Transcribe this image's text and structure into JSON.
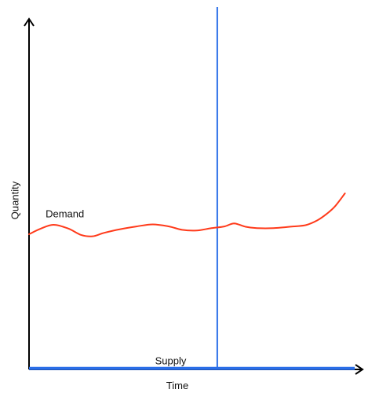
{
  "chart_data": {
    "type": "line",
    "title": "",
    "xlabel": "Time",
    "ylabel": "Quantity",
    "grid": false,
    "legend": "none",
    "xlim": [
      0,
      100
    ],
    "ylim": [
      0,
      100
    ],
    "series": [
      {
        "name": "Demand",
        "color": "#ff3a1a",
        "points": [
          [
            0,
            40
          ],
          [
            3.5,
            41.6
          ],
          [
            7.5,
            42.8
          ],
          [
            12,
            41.7
          ],
          [
            16,
            39.8
          ],
          [
            19.5,
            39.4
          ],
          [
            23,
            40.4
          ],
          [
            28,
            41.5
          ],
          [
            33,
            42.3
          ],
          [
            38,
            42.9
          ],
          [
            43,
            42.3
          ],
          [
            47,
            41.3
          ],
          [
            51.5,
            41.1
          ],
          [
            56,
            41.8
          ],
          [
            60,
            42.3
          ],
          [
            63,
            43.2
          ],
          [
            66.5,
            42.2
          ],
          [
            70,
            41.8
          ],
          [
            75,
            41.8
          ],
          [
            81,
            42.3
          ],
          [
            85,
            42.7
          ],
          [
            88.5,
            44.1
          ],
          [
            91.5,
            46.1
          ],
          [
            94,
            48.3
          ],
          [
            97,
            52.1
          ]
        ]
      },
      {
        "name": "Supply",
        "color": "#2a6ee8",
        "points": [
          [
            0,
            0.3
          ],
          [
            100,
            0.3
          ]
        ]
      }
    ],
    "vertical_line": {
      "x": 57.8,
      "color": "#2a6ee8"
    },
    "annotations": [
      {
        "text": "Demand",
        "x": 11,
        "y": 45
      },
      {
        "text": "Supply",
        "x": 43.5,
        "y": 1.5
      }
    ],
    "axis_color": "#000000"
  }
}
